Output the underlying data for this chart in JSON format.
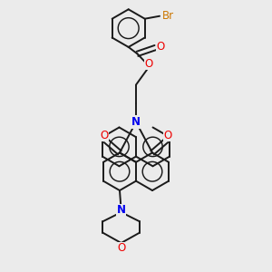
{
  "background_color": "#ebebeb",
  "bond_color": "#1a1a1a",
  "nitrogen_color": "#0000ee",
  "oxygen_color": "#ee0000",
  "bromine_color": "#cc7700",
  "figsize": [
    3.0,
    3.0
  ],
  "dpi": 100,
  "xlim": [
    0,
    10
  ],
  "ylim": [
    0,
    10
  ]
}
